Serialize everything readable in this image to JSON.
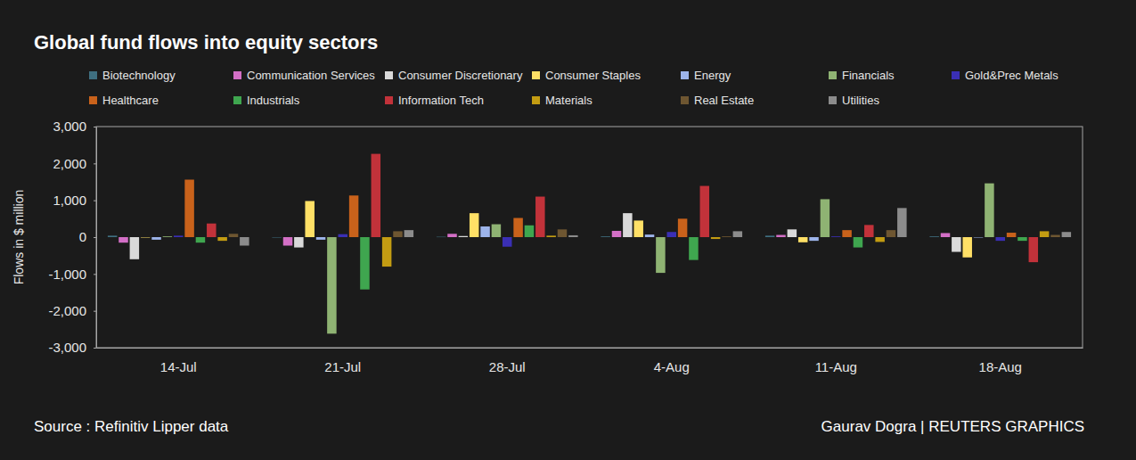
{
  "chart_data": {
    "type": "bar",
    "title": "Global fund flows into equity sectors",
    "y_label": "Flows in $ million",
    "annotations": [
      "Source : Refinitiv Lipper data",
      "Gaurav Dogra | REUTERS GRAPHICS"
    ],
    "categories": [
      "14-Jul",
      "21-Jul",
      "28-Jul",
      "4-Aug",
      "11-Aug",
      "18-Aug"
    ],
    "series": [
      {
        "name": "Biotechnology",
        "color": "#3f6f80",
        "values": [
          40,
          0,
          10,
          20,
          40,
          20
        ]
      },
      {
        "name": "Communication Services",
        "color": "#d36fc6",
        "values": [
          -150,
          -230,
          90,
          170,
          60,
          110
        ]
      },
      {
        "name": "Consumer Discretionary",
        "color": "#d9d9d9",
        "values": [
          -600,
          -280,
          30,
          650,
          210,
          -400
        ]
      },
      {
        "name": "Consumer Staples",
        "color": "#ffe066",
        "values": [
          0,
          980,
          650,
          450,
          -140,
          -550
        ]
      },
      {
        "name": "Energy",
        "color": "#9db4ea",
        "values": [
          -70,
          -70,
          290,
          70,
          -100,
          0
        ]
      },
      {
        "name": "Financials",
        "color": "#8fb373",
        "values": [
          20,
          -2620,
          350,
          -970,
          1030,
          1460
        ]
      },
      {
        "name": "Gold&Prec Metals",
        "color": "#3a2fb5",
        "values": [
          40,
          80,
          -260,
          140,
          20,
          -100
        ]
      },
      {
        "name": "Healthcare",
        "color": "#c9621b",
        "values": [
          1560,
          1130,
          520,
          500,
          190,
          120
        ]
      },
      {
        "name": "Industrials",
        "color": "#3fa64f",
        "values": [
          -150,
          -1420,
          320,
          -620,
          -280,
          -100
        ]
      },
      {
        "name": "Information Tech",
        "color": "#c2323a",
        "values": [
          370,
          2260,
          1100,
          1390,
          330,
          -680
        ]
      },
      {
        "name": "Materials",
        "color": "#c39c12",
        "values": [
          -100,
          -800,
          40,
          -50,
          -130,
          160
        ]
      },
      {
        "name": "Real Estate",
        "color": "#6e5631",
        "values": [
          90,
          160,
          210,
          20,
          190,
          60
        ]
      },
      {
        "name": "Utilities",
        "color": "#8c8c8c",
        "values": [
          -230,
          190,
          50,
          160,
          790,
          140
        ]
      }
    ],
    "ylim": [
      -3000,
      3000
    ],
    "yticks": [
      {
        "value": -3000,
        "label": "-3,000"
      },
      {
        "value": -2000,
        "label": "-2,000"
      },
      {
        "value": -1000,
        "label": "-1,000"
      },
      0,
      {
        "value": 1000,
        "label": "1,000"
      },
      {
        "value": 2000,
        "label": "2,000"
      },
      {
        "value": 3000,
        "label": "3,000"
      }
    ],
    "grid": false,
    "legend": "top"
  }
}
